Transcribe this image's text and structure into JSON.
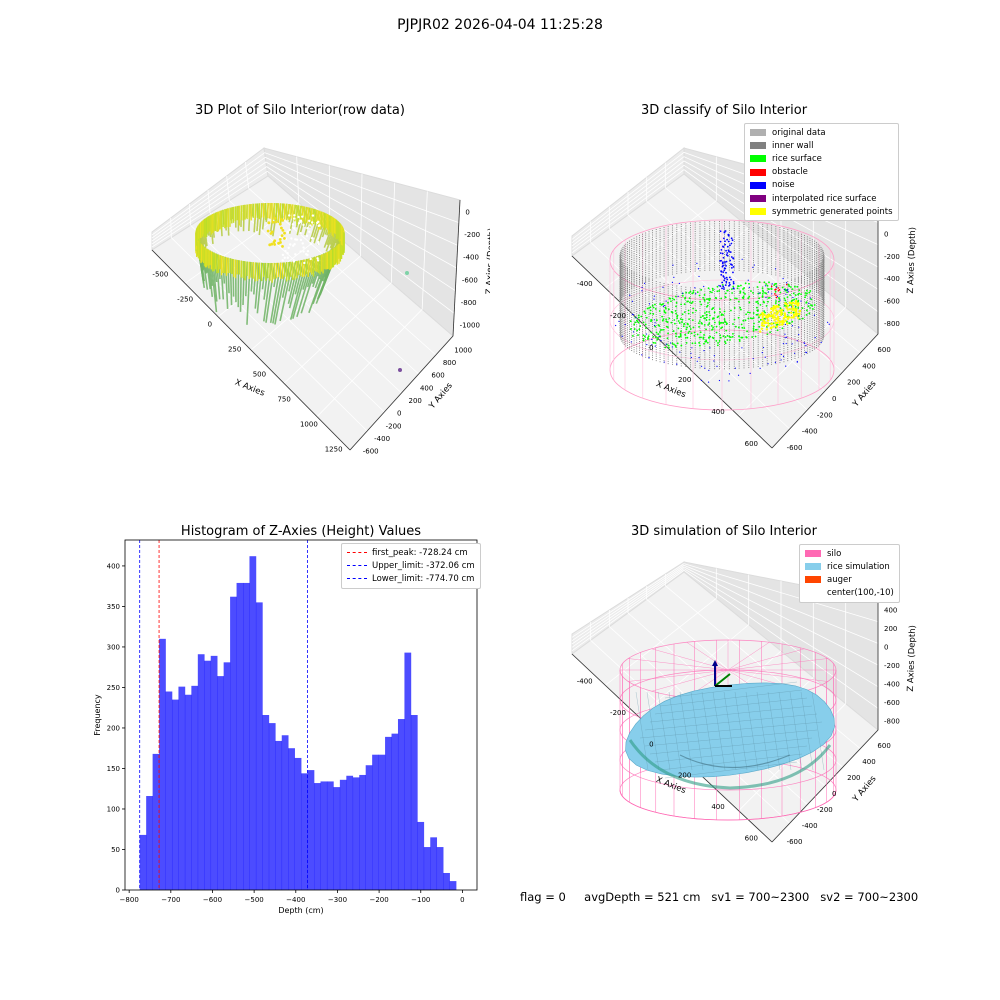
{
  "suptitle": "PJPJR02 2026-04-04 11:25:28",
  "status": {
    "flag": "flag = 0",
    "avg_depth": "avgDepth = 521 cm",
    "sv1": "sv1 = 700~2300",
    "sv2": "sv2 = 700~2300"
  },
  "chart_data": [
    {
      "type": "scatter",
      "title": "3D Plot of Silo Interior(row data)",
      "xlabel": "X Axies",
      "ylabel": "Y Axies",
      "zlabel": "Z Axies (Depth)",
      "x_ticks": [
        "-500",
        "-250",
        "0",
        "250",
        "500",
        "750",
        "1000",
        "1250"
      ],
      "y_ticks": [
        "-600",
        "-400",
        "-200",
        "0",
        "200",
        "400",
        "600",
        "800",
        "1000"
      ],
      "z_ticks": [
        "0",
        "-200",
        "-400",
        "-600",
        "-800",
        "-1000"
      ],
      "colors": {
        "low": "#2a9a8a",
        "high": "#f0e020"
      }
    },
    {
      "type": "scatter",
      "title": "3D classify of Silo Interior",
      "xlabel": "X Axies",
      "ylabel": "Y Axies",
      "zlabel": "Z Axies (Depth)",
      "x_ticks": [
        "-400",
        "-200",
        "0",
        "200",
        "400",
        "600"
      ],
      "y_ticks": [
        "-600",
        "-400",
        "-200",
        "0",
        "200",
        "400",
        "600"
      ],
      "z_ticks": [
        "200",
        "0",
        "-200",
        "-400",
        "-600",
        "-800"
      ],
      "legend": [
        {
          "label": "original data",
          "color": "#b0b0b0"
        },
        {
          "label": "inner wall",
          "color": "#808080"
        },
        {
          "label": "rice surface",
          "color": "#00ff00"
        },
        {
          "label": "obstacle",
          "color": "#ff0000"
        },
        {
          "label": "noise",
          "color": "#0000ff"
        },
        {
          "label": "interpolated rice surface",
          "color": "#800080"
        },
        {
          "label": "symmetric generated points",
          "color": "#ffff00"
        }
      ]
    },
    {
      "type": "bar",
      "title": "Histogram of Z-Axies (Height) Values",
      "xlabel": "Depth (cm)",
      "ylabel": "Frequency",
      "xlim": [
        -810,
        35
      ],
      "ylim": [
        0,
        432
      ],
      "x_ticks": [
        -800,
        -700,
        -600,
        -500,
        -400,
        -300,
        -200,
        -100,
        0
      ],
      "y_ticks": [
        0,
        50,
        100,
        150,
        200,
        250,
        300,
        350,
        400
      ],
      "bin_start": -774.7,
      "bin_width": 15.5,
      "values": [
        68,
        116,
        168,
        310,
        245,
        235,
        251,
        241,
        252,
        291,
        283,
        289,
        264,
        281,
        362,
        379,
        379,
        412,
        355,
        216,
        206,
        184,
        191,
        175,
        163,
        144,
        148,
        132,
        134,
        134,
        127,
        136,
        141,
        139,
        142,
        154,
        167,
        167,
        189,
        193,
        211,
        293,
        216,
        84,
        53,
        65,
        53,
        21,
        11
      ],
      "bar_color": "#0000ff",
      "vlines": [
        {
          "label": "first_peak: -728.24 cm",
          "x": -728.24,
          "color": "#ff0000"
        },
        {
          "label": "Upper_limit: -372.06 cm",
          "x": -372.06,
          "color": "#0000ff"
        },
        {
          "label": "Lower_limit: -774.70 cm",
          "x": -774.7,
          "color": "#0000ff"
        }
      ]
    },
    {
      "type": "surface",
      "title": "3D simulation of Silo Interior",
      "xlabel": "X Axies",
      "ylabel": "Y Axies",
      "zlabel": "Z Axies (Depth)",
      "x_ticks": [
        "-400",
        "-200",
        "0",
        "200",
        "400",
        "600"
      ],
      "y_ticks": [
        "-600",
        "-400",
        "-200",
        "0",
        "200",
        "400",
        "600"
      ],
      "z_ticks": [
        "400",
        "200",
        "0",
        "-200",
        "-400",
        "-600",
        "-800"
      ],
      "legend": [
        {
          "label": "silo",
          "color": "#ff69b4"
        },
        {
          "label": "rice simulation",
          "color": "#87ceeb"
        },
        {
          "label": "auger",
          "color": "#ff4500"
        },
        {
          "label": "center(100,-10)",
          "color": ""
        }
      ]
    }
  ]
}
